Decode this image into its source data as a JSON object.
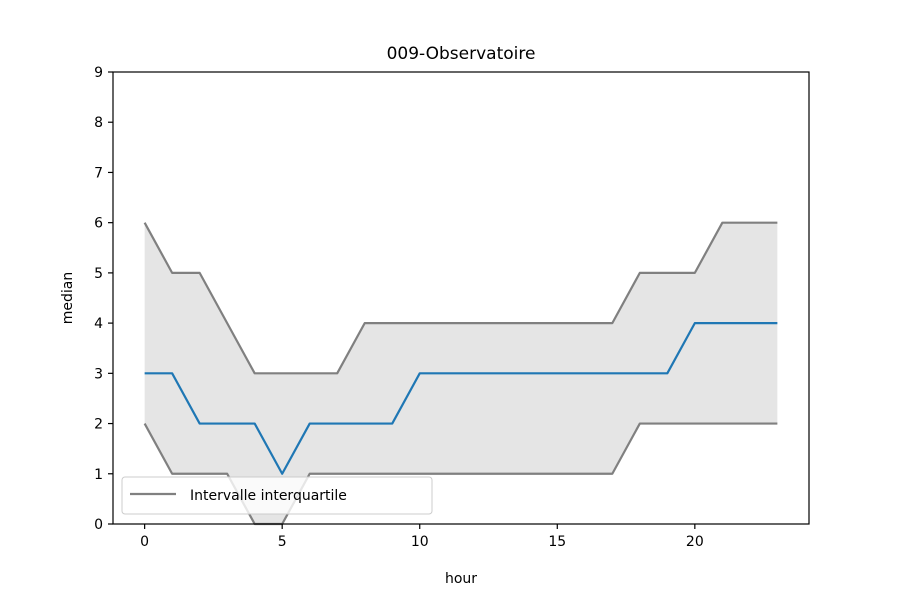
{
  "chart_data": {
    "type": "line",
    "title": "009-Observatoire",
    "xlabel": "hour",
    "ylabel": "median",
    "xlim": [
      -1.15,
      24.15
    ],
    "ylim": [
      0,
      9
    ],
    "xticks": [
      0,
      5,
      10,
      15,
      20
    ],
    "yticks": [
      0,
      1,
      2,
      3,
      4,
      5,
      6,
      7,
      8,
      9
    ],
    "grid": false,
    "legend": {
      "placement": "lower-left",
      "entries": [
        "Intervalle interquartile"
      ]
    },
    "x": [
      0,
      1,
      2,
      3,
      4,
      5,
      6,
      7,
      8,
      9,
      10,
      11,
      12,
      13,
      14,
      15,
      16,
      17,
      18,
      19,
      20,
      21,
      22,
      23
    ],
    "series": [
      {
        "role": "median",
        "color": "#1f77b4",
        "values": [
          3,
          3,
          2,
          2,
          2,
          1,
          2,
          2,
          2,
          2,
          3,
          3,
          3,
          3,
          3,
          3,
          3,
          3,
          3,
          3,
          4,
          4,
          4,
          4
        ]
      },
      {
        "role": "q3",
        "name": "Intervalle interquartile",
        "color": "#808080",
        "values": [
          6,
          5,
          5,
          4,
          3,
          3,
          3,
          3,
          4,
          4,
          4,
          4,
          4,
          4,
          4,
          4,
          4,
          4,
          5,
          5,
          5,
          6,
          6,
          6
        ]
      },
      {
        "role": "q1",
        "color": "#808080",
        "values": [
          2,
          1,
          1,
          1,
          0,
          0,
          1,
          1,
          1,
          1,
          1,
          1,
          1,
          1,
          1,
          1,
          1,
          1,
          2,
          2,
          2,
          2,
          2,
          2
        ]
      }
    ],
    "fill_color": "#e5e5e5"
  }
}
